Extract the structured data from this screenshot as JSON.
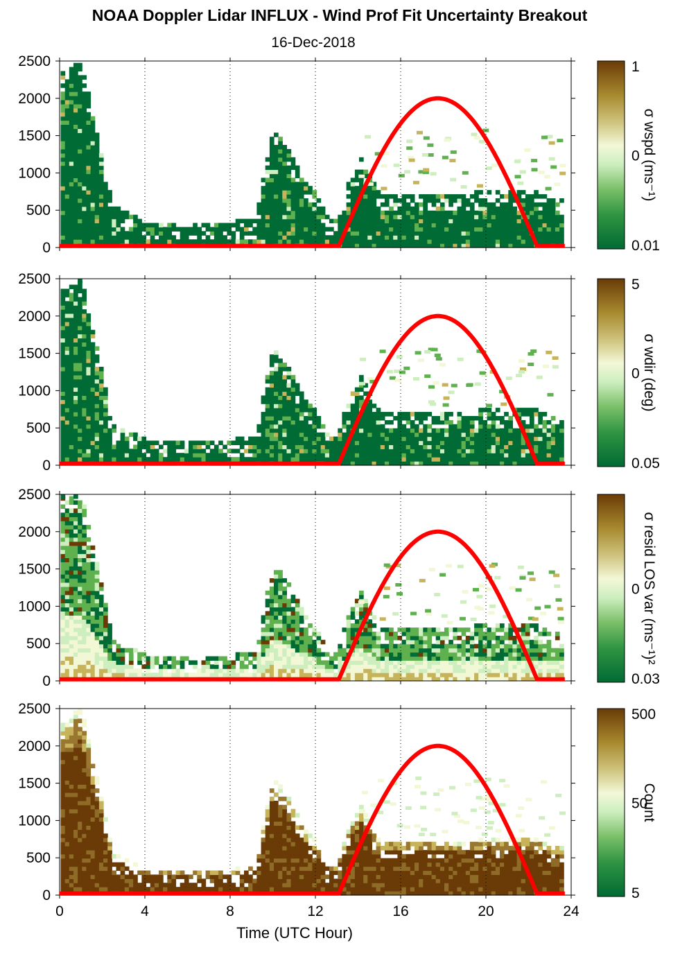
{
  "title": "NOAA Doppler Lidar INFLUX - Wind Prof Fit Uncertainty Breakout",
  "subtitle": "16-Dec-2018",
  "colors": {
    "dark_green": "#006b34",
    "mid_green": "#5fb04f",
    "light_green": "#cfeec0",
    "pale": "#f2f7d6",
    "tan": "#c7b35a",
    "brown": "#6a3b07",
    "sun_curve": "#ff0000"
  },
  "chart_data": [
    {
      "type": "heatmap",
      "panel": 1,
      "xlabel": "",
      "ylabel": "",
      "xlim": [
        0,
        24
      ],
      "ylim": [
        0,
        2500
      ],
      "xticks": [
        "0",
        "4",
        "8",
        "12",
        "16",
        "20",
        "24"
      ],
      "yticks": [
        "0",
        "500",
        "1000",
        "1500",
        "2000",
        "2500"
      ],
      "vertical_gridlines": [
        4,
        8,
        12,
        16,
        20,
        24
      ],
      "colorbar": {
        "label": "σ wspd (ms⁻¹)",
        "ticks": [
          "1",
          "0",
          "0.01"
        ],
        "scale": "log"
      },
      "tops": [
        [
          0,
          2280
        ],
        [
          1,
          2500
        ],
        [
          2,
          1240
        ],
        [
          2.5,
          520
        ],
        [
          3,
          480
        ],
        [
          4,
          330
        ],
        [
          6,
          330
        ],
        [
          8,
          320
        ],
        [
          9.2,
          360
        ],
        [
          10,
          1550
        ],
        [
          10.8,
          1280
        ],
        [
          11.3,
          960
        ],
        [
          12,
          700
        ],
        [
          12.5,
          420
        ],
        [
          13,
          340
        ],
        [
          13.6,
          900
        ],
        [
          14.2,
          1180
        ],
        [
          15,
          700
        ],
        [
          17,
          710
        ],
        [
          19,
          690
        ],
        [
          20,
          750
        ],
        [
          21,
          710
        ],
        [
          22,
          770
        ],
        [
          23,
          650
        ],
        [
          23.7,
          630
        ]
      ],
      "sun_elevation_curve": {
        "rise_hour": 13.1,
        "set_hour": 22.4,
        "peak_hour": 17.7,
        "peak_value": 2000
      }
    },
    {
      "type": "heatmap",
      "panel": 2,
      "xlabel": "",
      "ylabel": "",
      "xlim": [
        0,
        24
      ],
      "ylim": [
        0,
        2500
      ],
      "xticks": [
        "0",
        "4",
        "8",
        "12",
        "16",
        "20",
        "24"
      ],
      "yticks": [
        "0",
        "500",
        "1000",
        "1500",
        "2000",
        "2500"
      ],
      "vertical_gridlines": [
        4,
        8,
        12,
        16,
        20,
        24
      ],
      "colorbar": {
        "label": "σ wdir (deg)",
        "ticks": [
          "5",
          "0",
          "0.05"
        ],
        "scale": "log"
      },
      "tops": [
        [
          0,
          2280
        ],
        [
          1,
          2500
        ],
        [
          2,
          1240
        ],
        [
          2.5,
          520
        ],
        [
          3,
          480
        ],
        [
          4,
          330
        ],
        [
          6,
          330
        ],
        [
          8,
          320
        ],
        [
          9.2,
          360
        ],
        [
          10,
          1550
        ],
        [
          10.8,
          1280
        ],
        [
          11.3,
          960
        ],
        [
          12,
          700
        ],
        [
          12.5,
          420
        ],
        [
          13,
          340
        ],
        [
          13.6,
          900
        ],
        [
          14.2,
          1180
        ],
        [
          15,
          700
        ],
        [
          17,
          710
        ],
        [
          19,
          690
        ],
        [
          20,
          750
        ],
        [
          21,
          710
        ],
        [
          22,
          770
        ],
        [
          23,
          650
        ],
        [
          23.7,
          630
        ]
      ],
      "sun_elevation_curve": {
        "rise_hour": 13.1,
        "set_hour": 22.4,
        "peak_hour": 17.7,
        "peak_value": 2000
      }
    },
    {
      "type": "heatmap",
      "panel": 3,
      "xlabel": "",
      "ylabel": "",
      "xlim": [
        0,
        24
      ],
      "ylim": [
        0,
        2500
      ],
      "xticks": [
        "0",
        "4",
        "8",
        "12",
        "16",
        "20",
        "24"
      ],
      "yticks": [
        "0",
        "500",
        "1000",
        "1500",
        "2000",
        "2500"
      ],
      "vertical_gridlines": [
        4,
        8,
        12,
        16,
        20,
        24
      ],
      "colorbar": {
        "label": "σ resid LOS var (ms⁻¹)²",
        "ticks": [
          "",
          "0",
          "0.03"
        ],
        "scale": "log"
      },
      "tops": [
        [
          0,
          2480
        ],
        [
          1,
          2500
        ],
        [
          2,
          1240
        ],
        [
          2.5,
          520
        ],
        [
          3,
          480
        ],
        [
          4,
          330
        ],
        [
          6,
          330
        ],
        [
          8,
          320
        ],
        [
          9.2,
          360
        ],
        [
          10,
          1550
        ],
        [
          10.8,
          1280
        ],
        [
          11.3,
          960
        ],
        [
          12,
          700
        ],
        [
          12.5,
          420
        ],
        [
          13,
          340
        ],
        [
          13.6,
          900
        ],
        [
          14.2,
          1180
        ],
        [
          15,
          700
        ],
        [
          17,
          710
        ],
        [
          19,
          690
        ],
        [
          20,
          750
        ],
        [
          21,
          710
        ],
        [
          22,
          770
        ],
        [
          23,
          650
        ],
        [
          23.7,
          630
        ]
      ],
      "sun_elevation_curve": {
        "rise_hour": 13.1,
        "set_hour": 22.4,
        "peak_hour": 17.7,
        "peak_value": 2000
      }
    },
    {
      "type": "heatmap",
      "panel": 4,
      "xlabel": "Time (UTC Hour)",
      "ylabel": "",
      "xlim": [
        0,
        24
      ],
      "ylim": [
        0,
        2500
      ],
      "xticks": [
        "0",
        "4",
        "8",
        "12",
        "16",
        "20",
        "24"
      ],
      "yticks": [
        "0",
        "500",
        "1000",
        "1500",
        "2000",
        "2500"
      ],
      "vertical_gridlines": [
        4,
        8,
        12,
        16,
        20,
        24
      ],
      "colorbar": {
        "label": "Count",
        "ticks": [
          "500",
          "50",
          "5"
        ],
        "scale": "log"
      },
      "tops": [
        [
          0,
          2280
        ],
        [
          1,
          2500
        ],
        [
          2,
          1240
        ],
        [
          2.5,
          520
        ],
        [
          3,
          480
        ],
        [
          4,
          330
        ],
        [
          6,
          330
        ],
        [
          8,
          320
        ],
        [
          9.2,
          360
        ],
        [
          10,
          1550
        ],
        [
          10.8,
          1280
        ],
        [
          11.3,
          960
        ],
        [
          12,
          700
        ],
        [
          12.5,
          420
        ],
        [
          13,
          340
        ],
        [
          13.6,
          900
        ],
        [
          14.2,
          1180
        ],
        [
          15,
          700
        ],
        [
          17,
          710
        ],
        [
          19,
          690
        ],
        [
          20,
          750
        ],
        [
          21,
          710
        ],
        [
          22,
          770
        ],
        [
          23,
          650
        ],
        [
          23.7,
          630
        ]
      ],
      "sun_elevation_curve": {
        "rise_hour": 13.1,
        "set_hour": 22.4,
        "peak_hour": 17.7,
        "peak_value": 2000
      }
    }
  ]
}
